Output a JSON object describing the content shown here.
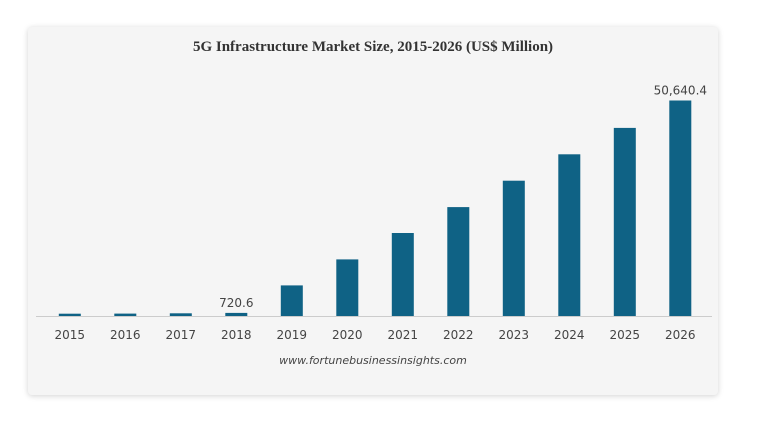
{
  "chart_data": {
    "type": "bar",
    "title": "5G Infrastructure Market Size, 2015-2026 (US$ Million)",
    "xlabel": "",
    "ylabel": "",
    "categories": [
      "2015",
      "2016",
      "2017",
      "2018",
      "2019",
      "2020",
      "2021",
      "2022",
      "2023",
      "2024",
      "2025",
      "2026"
    ],
    "values": [
      540,
      560,
      640,
      720.6,
      7200,
      13300,
      19500,
      25600,
      31800,
      38000,
      44200,
      50640.4
    ],
    "data_labels": [
      {
        "index": 3,
        "text": "720.6"
      },
      {
        "index": 11,
        "text": "50,640.4"
      }
    ],
    "ylim": [
      0,
      55000
    ],
    "grid": false,
    "legend": "none",
    "bar_color": "#0f6285",
    "axis_color": "#cccccc"
  },
  "source": "www.fortunebusinessinsights.com"
}
